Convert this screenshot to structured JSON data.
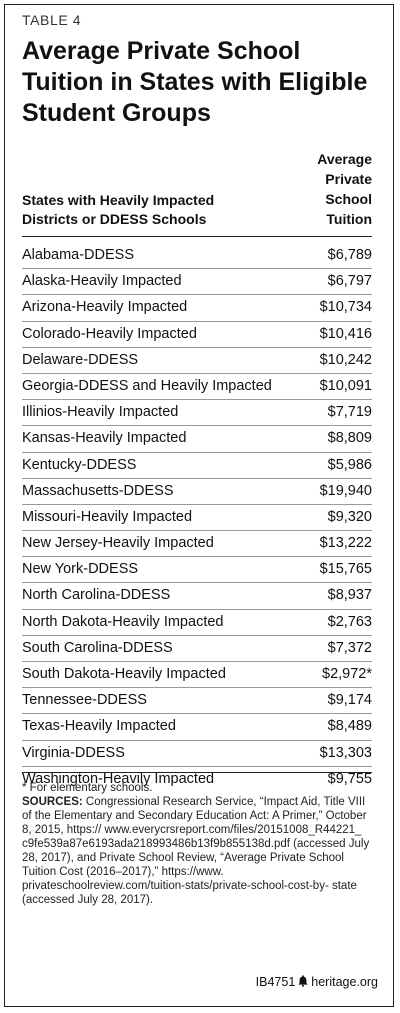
{
  "table_label": "TABLE 4",
  "title": "Average Private School Tuition in States with Eligible Student Groups",
  "header": {
    "states_line1": "States with Heavily Impacted",
    "states_line2": "Districts or DDESS Schools",
    "tuition_lines": [
      "Average",
      "Private",
      "School",
      "Tuition"
    ]
  },
  "rows": [
    {
      "state": "Alabama-DDESS",
      "tuition": "$6,789"
    },
    {
      "state": "Alaska-Heavily Impacted",
      "tuition": "$6,797"
    },
    {
      "state": "Arizona-Heavily Impacted",
      "tuition": "$10,734"
    },
    {
      "state": "Colorado-Heavily Impacted",
      "tuition": "$10,416"
    },
    {
      "state": "Delaware-DDESS",
      "tuition": "$10,242"
    },
    {
      "state": "Georgia-DDESS and Heavily Impacted",
      "tuition": "$10,091"
    },
    {
      "state": "Illinios-Heavily Impacted",
      "tuition": "$7,719"
    },
    {
      "state": "Kansas-Heavily Impacted",
      "tuition": "$8,809"
    },
    {
      "state": "Kentucky-DDESS",
      "tuition": "$5,986"
    },
    {
      "state": "Massachusetts-DDESS",
      "tuition": "$19,940"
    },
    {
      "state": "Missouri-Heavily Impacted",
      "tuition": "$9,320"
    },
    {
      "state": "New Jersey-Heavily Impacted",
      "tuition": "$13,222"
    },
    {
      "state": "New York-DDESS",
      "tuition": "$15,765"
    },
    {
      "state": "North Carolina-DDESS",
      "tuition": "$8,937"
    },
    {
      "state": "North Dakota-Heavily Impacted",
      "tuition": "$2,763"
    },
    {
      "state": "South Carolina-DDESS",
      "tuition": "$7,372"
    },
    {
      "state": "South Dakota-Heavily Impacted",
      "tuition": "$2,972*"
    },
    {
      "state": "Tennessee-DDESS",
      "tuition": "$9,174"
    },
    {
      "state": "Texas-Heavily Impacted",
      "tuition": "$8,489"
    },
    {
      "state": "Virginia-DDESS",
      "tuition": "$13,303"
    },
    {
      "state": "Washington-Heavily Impacted",
      "tuition": "$9,755"
    }
  ],
  "footnote": "* For elementary schools.",
  "sources_label": "SOURCES:",
  "sources_text": "Congressional Research Service, “Impact Aid, Title VIII of the Elementary and Secondary Education Act: A Primer,” October 8, 2015, https:// www.everycrsreport.com/files/20151008_R44221_ c9fe539a87e6193ada218993486b13f9b855138d.pdf (accessed July 28, 2017), and Private School Review, “Average Private School Tuition Cost (2016–2017),” https://www. privateschoolreview.com/tuition-stats/private-school-cost-by- state (accessed July 28, 2017).",
  "brand": {
    "code": "IB4751",
    "icon": "liberty-bell-icon",
    "site": "heritage.org"
  }
}
